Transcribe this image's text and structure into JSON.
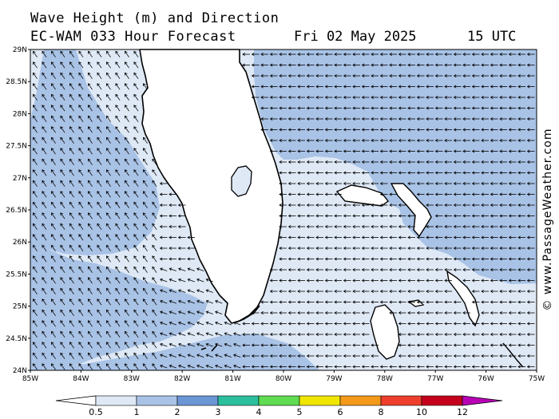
{
  "header": {
    "line1": "Wave Height (m) and Direction",
    "line2": "EC-WAM 033 Hour Forecast",
    "date": "Fri 02 May 2025",
    "utc": "15 UTC"
  },
  "credit": "© www.PassageWeather.com",
  "axes": {
    "lat_labels": [
      "29N",
      "28.5N",
      "28N",
      "27.5N",
      "27N",
      "26.5N",
      "26N",
      "25.5N",
      "25N",
      "24.5N",
      "24N"
    ],
    "lon_labels": [
      "85W",
      "84W",
      "83W",
      "82W",
      "81W",
      "80W",
      "79W",
      "78W",
      "77W",
      "76W",
      "75W"
    ]
  },
  "colorbar": {
    "labels": [
      "0.5",
      "1",
      "2",
      "3",
      "4",
      "5",
      "6",
      "8",
      "10",
      "12"
    ],
    "colors": [
      "#dfe9f6",
      "#a9c3e6",
      "#6b96d6",
      "#2bbf9e",
      "#5fdc52",
      "#f0e600",
      "#f39a1b",
      "#ed3f2c",
      "#c4001c",
      "#b800b6"
    ]
  },
  "colors": {
    "land": "#ffffff",
    "coast": "#000000",
    "band_0_5": "#dfe9f6",
    "band_1": "#a9c3e6",
    "band_2": "#6b96d6",
    "arrow": "#000000"
  }
}
